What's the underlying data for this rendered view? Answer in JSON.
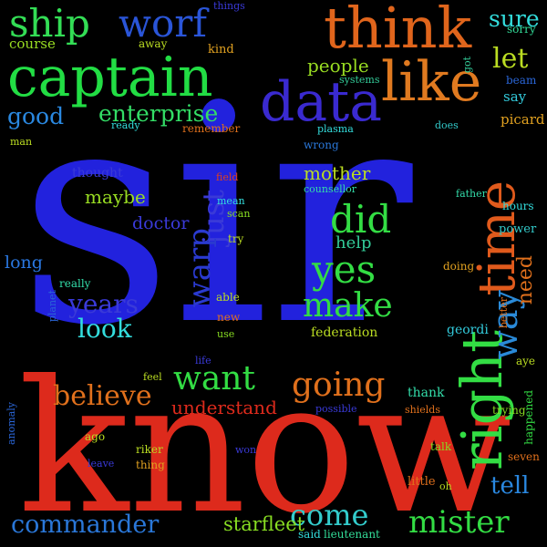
{
  "background": "#000000",
  "words": [
    {
      "text": "sir",
      "color": "#2222dd"
    },
    {
      "text": "know",
      "color": "#dd2a1c"
    },
    {
      "text": "captain",
      "color": "#22dd44"
    },
    {
      "text": "think",
      "color": "#e0651c"
    },
    {
      "text": "data",
      "color": "#3a2ad0"
    },
    {
      "text": "like",
      "color": "#e07a20"
    },
    {
      "text": "ship",
      "color": "#33dd55"
    },
    {
      "text": "worf",
      "color": "#2a55d8"
    },
    {
      "text": "time",
      "color": "#e05a1c"
    },
    {
      "text": "right",
      "color": "#33dd44"
    },
    {
      "text": "just",
      "color": "#3a3ad8"
    },
    {
      "text": "warp",
      "color": "#2a3ad0"
    },
    {
      "text": "way",
      "color": "#2a8ad8"
    },
    {
      "text": "yes",
      "color": "#33dd44"
    },
    {
      "text": "did",
      "color": "#33dd44"
    },
    {
      "text": "make",
      "color": "#33dd44"
    },
    {
      "text": "going",
      "color": "#e0701c"
    },
    {
      "text": "want",
      "color": "#33dd44"
    },
    {
      "text": "believe",
      "color": "#e0701c"
    },
    {
      "text": "commander",
      "color": "#2a77d8"
    },
    {
      "text": "mister",
      "color": "#33dd44"
    },
    {
      "text": "come",
      "color": "#33cccc"
    },
    {
      "text": "let",
      "color": "#bbdd22"
    },
    {
      "text": "sure",
      "color": "#33dddd"
    },
    {
      "text": "enterprise",
      "color": "#33dd66"
    },
    {
      "text": "good",
      "color": "#2a88e0"
    },
    {
      "text": "people",
      "color": "#99dd22"
    },
    {
      "text": "years",
      "color": "#3a3ad8"
    },
    {
      "text": "look",
      "color": "#33dddd"
    },
    {
      "text": "mother",
      "color": "#bbdd22"
    },
    {
      "text": "maybe",
      "color": "#99dd22"
    },
    {
      "text": "doctor",
      "color": "#3a3ad8"
    },
    {
      "text": "long",
      "color": "#2a77e0"
    },
    {
      "text": "need",
      "color": "#e0701c"
    },
    {
      "text": "understand",
      "color": "#dd2a1c"
    },
    {
      "text": "tell",
      "color": "#2a88e0"
    },
    {
      "text": "starfleet",
      "color": "#88dd22"
    },
    {
      "text": "help",
      "color": "#33cc99"
    },
    {
      "text": "course",
      "color": "#99dd22"
    },
    {
      "text": "say",
      "color": "#33ccdd"
    },
    {
      "text": "picard",
      "color": "#e0a020"
    },
    {
      "text": "happened",
      "color": "#33dd44"
    },
    {
      "text": "federation",
      "color": "#bbdd22"
    },
    {
      "text": "thank",
      "color": "#33ddaa"
    },
    {
      "text": "geordi",
      "color": "#33ccdd"
    },
    {
      "text": "sorry",
      "color": "#33dd99"
    },
    {
      "text": "beam",
      "color": "#2a66d8"
    },
    {
      "text": "away",
      "color": "#bbdd22"
    },
    {
      "text": "kind",
      "color": "#e0a020"
    },
    {
      "text": "things",
      "color": "#3a3ad8"
    },
    {
      "text": "systems",
      "color": "#33cc99"
    },
    {
      "text": "got",
      "color": "#33cc99"
    },
    {
      "text": "does",
      "color": "#33cccc"
    },
    {
      "text": "ready",
      "color": "#33dddd"
    },
    {
      "text": "remember",
      "color": "#e0701c"
    },
    {
      "text": "plasma",
      "color": "#33dddd"
    },
    {
      "text": "wrong",
      "color": "#2a77d8"
    },
    {
      "text": "man",
      "color": "#bbdd22"
    },
    {
      "text": "thought",
      "color": "#3a3ad8"
    },
    {
      "text": "field",
      "color": "#e0401c"
    },
    {
      "text": "counsellor",
      "color": "#33ddaa"
    },
    {
      "text": "father",
      "color": "#33ddaa"
    },
    {
      "text": "hours",
      "color": "#33dddd"
    },
    {
      "text": "mean",
      "color": "#33dddd"
    },
    {
      "text": "scan",
      "color": "#88dd22"
    },
    {
      "text": "power",
      "color": "#33cccc"
    },
    {
      "text": "try",
      "color": "#bbdd22"
    },
    {
      "text": "really",
      "color": "#33ddaa"
    },
    {
      "text": "planet",
      "color": "#2a66d8"
    },
    {
      "text": "able",
      "color": "#bbdd22"
    },
    {
      "text": "new",
      "color": "#e0701c"
    },
    {
      "text": "use",
      "color": "#88dd22"
    },
    {
      "text": "doing",
      "color": "#e0a020"
    },
    {
      "text": "better",
      "color": "#e0701c"
    },
    {
      "text": "life",
      "color": "#3a3ad8"
    },
    {
      "text": "aye",
      "color": "#bbdd22"
    },
    {
      "text": "feel",
      "color": "#bbdd22"
    },
    {
      "text": "possible",
      "color": "#3a3ad8"
    },
    {
      "text": "shields",
      "color": "#e0701c"
    },
    {
      "text": "trying",
      "color": "#88dd22"
    },
    {
      "text": "anomaly",
      "color": "#2a66d8"
    },
    {
      "text": "ago",
      "color": "#bbdd22"
    },
    {
      "text": "riker",
      "color": "#bbdd22"
    },
    {
      "text": "won",
      "color": "#3a3ad8"
    },
    {
      "text": "talk",
      "color": "#88dd22"
    },
    {
      "text": "seven",
      "color": "#e0701c"
    },
    {
      "text": "leave",
      "color": "#3a3ad8"
    },
    {
      "text": "thing",
      "color": "#e0a020"
    },
    {
      "text": "little",
      "color": "#e0701c"
    },
    {
      "text": "oh",
      "color": "#bbdd22"
    },
    {
      "text": "said",
      "color": "#33dddd"
    },
    {
      "text": "lieutenant",
      "color": "#33dd99"
    }
  ]
}
